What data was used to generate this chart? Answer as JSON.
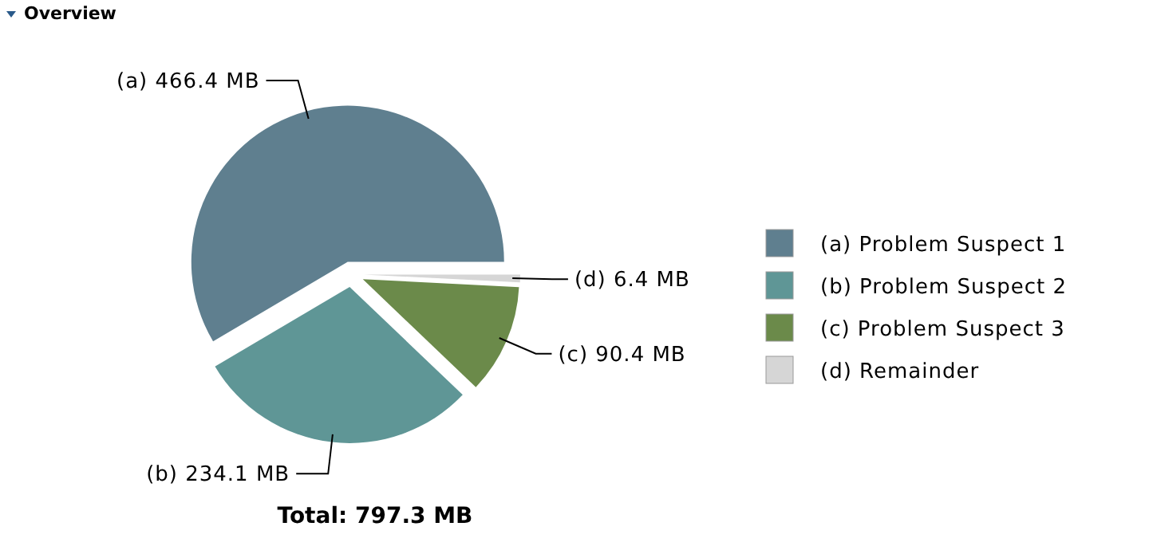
{
  "chart_data": {
    "type": "pie",
    "title": "Overview",
    "categories": [
      "(a) Problem Suspect 1",
      "(b) Problem Suspect 2",
      "(c) Problem Suspect 3",
      "(d) Remainder"
    ],
    "values": [
      466.4,
      234.1,
      90.4,
      6.4
    ],
    "colors": [
      "#5f7f8f",
      "#5f9696",
      "#6b8a4a",
      "#d6d6d6"
    ],
    "value_labels": [
      "(a) 466.4 MB",
      "(b) 234.1 MB",
      "(c) 90.4 MB",
      "(d) 6.4 MB"
    ],
    "legend": "right",
    "annotations": [
      "Total: 797.3 MB"
    ]
  }
}
